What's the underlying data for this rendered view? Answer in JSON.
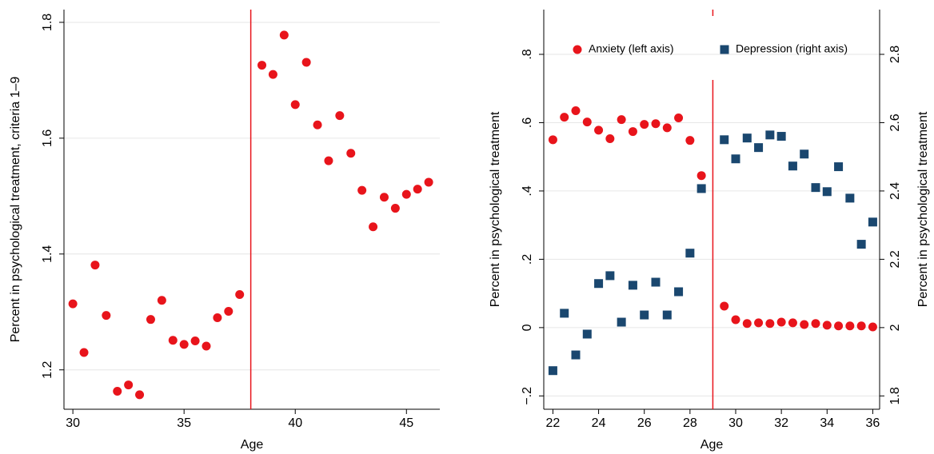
{
  "chart_data": [
    {
      "type": "scatter",
      "xlabel": "Age",
      "ylabel": "Percent in psychological treatment, criteria 1–9",
      "x": [
        30,
        30.5,
        31,
        31.5,
        32,
        32.5,
        33,
        33.5,
        34,
        34.5,
        35,
        35.5,
        36,
        36.5,
        37,
        37.5,
        38.5,
        39,
        39.5,
        40,
        40.5,
        41,
        41.5,
        42,
        42.5,
        43,
        43.5,
        44,
        44.5,
        45,
        45.5,
        46
      ],
      "series": [
        {
          "color": "#e8141b",
          "values": [
            1.314,
            1.23,
            1.381,
            1.294,
            1.163,
            1.174,
            1.157,
            1.287,
            1.32,
            1.251,
            1.244,
            1.25,
            1.241,
            1.29,
            1.301,
            1.33,
            1.726,
            1.71,
            1.778,
            1.658,
            1.731,
            1.623,
            1.561,
            1.639,
            1.574,
            1.51,
            1.447,
            1.498,
            1.479,
            1.503,
            1.512,
            1.524
          ]
        }
      ],
      "xlim": [
        29.6,
        46.5
      ],
      "xticks": [
        30,
        35,
        40,
        45
      ],
      "ylim": [
        1.132,
        1.822
      ],
      "yticks": [
        1.2,
        1.4,
        1.6,
        1.8
      ],
      "grid": true,
      "vline": 38,
      "vline_color": "#e8141b"
    },
    {
      "type": "scatter",
      "xlabel": "Age",
      "ylabel": "Percent in psychological treatment",
      "y2label": "Percent in psychological treatment",
      "x": [
        22,
        22.5,
        23,
        23.5,
        24,
        24.5,
        25,
        25.5,
        26,
        26.5,
        27,
        27.5,
        28,
        28.5,
        29.5,
        30,
        30.5,
        31,
        31.5,
        32,
        32.5,
        33,
        33.5,
        34,
        34.5,
        35,
        35.5,
        36
      ],
      "series": [
        {
          "name": "Anxiety (left axis)",
          "color": "#e8141b",
          "marker": "circle",
          "values": [
            0.55,
            0.616,
            0.635,
            0.602,
            0.578,
            0.553,
            0.609,
            0.574,
            0.595,
            0.597,
            0.585,
            0.614,
            0.548,
            0.445,
            0.063,
            0.023,
            0.012,
            0.014,
            0.012,
            0.016,
            0.014,
            0.009,
            0.012,
            0.007,
            0.005,
            0.005,
            0.005,
            0.002
          ]
        },
        {
          "name": "Depression (right axis)",
          "color": "#1a476f",
          "marker": "square",
          "axis": "y2",
          "values": [
            1.874,
            2.042,
            1.92,
            1.981,
            2.129,
            2.152,
            2.016,
            2.124,
            2.037,
            2.133,
            2.037,
            2.105,
            2.218,
            2.407,
            2.55,
            2.494,
            2.555,
            2.527,
            2.564,
            2.56,
            2.473,
            2.508,
            2.41,
            2.398,
            2.471,
            2.379,
            2.244,
            2.309
          ]
        }
      ],
      "xlim": [
        21.6,
        36.3
      ],
      "xticks": [
        22,
        24,
        26,
        28,
        30,
        32,
        34,
        36
      ],
      "ylim": [
        -0.239,
        0.931
      ],
      "yticks": [
        {
          "value": -0.2,
          "label": "−.2"
        },
        0,
        {
          "value": 0.2,
          "label": ".2"
        },
        {
          "value": 0.4,
          "label": ".4"
        },
        {
          "value": 0.6,
          "label": ".6"
        },
        {
          "value": 0.8,
          "label": ".8"
        }
      ],
      "y2lim": [
        1.761,
        2.931
      ],
      "y2ticks": [
        1.8,
        2,
        2.2,
        2.4,
        2.6,
        2.8
      ],
      "grid": true,
      "legend": "top",
      "vline": 29,
      "vline_color": "#e8141b"
    }
  ]
}
